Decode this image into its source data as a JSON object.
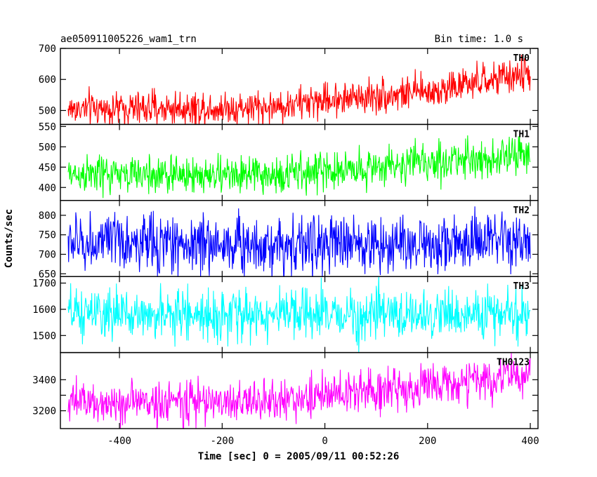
{
  "chart_data": {
    "type": "line",
    "title": "ae050911005226_wam1_trn",
    "bin_time_label": "Bin time: 1.0 s",
    "xlabel": "Time [sec] 0 = 2005/09/11 00:52:26",
    "ylabel": "Counts/sec",
    "xlim": [
      -515,
      415
    ],
    "x_ticks": [
      -400,
      -200,
      0,
      200,
      400
    ],
    "x_range": [
      -500,
      400
    ],
    "bin_time_s": 1.0,
    "grid": false,
    "legend": "none",
    "panels": [
      {
        "name": "TH0",
        "color": "#ff0000",
        "ylim": [
          455,
          700
        ],
        "yticks": [
          500,
          600,
          700
        ],
        "trend": [
          [
            -500,
            505
          ],
          [
            -100,
            510
          ],
          [
            0,
            535
          ],
          [
            200,
            560
          ],
          [
            400,
            620
          ]
        ],
        "noise": 28
      },
      {
        "name": "TH1",
        "color": "#00ff00",
        "ylim": [
          368,
          555
        ],
        "yticks": [
          400,
          450,
          500,
          550
        ],
        "trend": [
          [
            -500,
            432
          ],
          [
            -100,
            430
          ],
          [
            0,
            440
          ],
          [
            200,
            462
          ],
          [
            400,
            480
          ]
        ],
        "noise": 24
      },
      {
        "name": "TH2",
        "color": "#0000ff",
        "ylim": [
          643,
          838
        ],
        "yticks": [
          650,
          700,
          750,
          800
        ],
        "trend": [
          [
            -500,
            730
          ],
          [
            0,
            725
          ],
          [
            400,
            730
          ]
        ],
        "noise": 38
      },
      {
        "name": "TH3",
        "color": "#00ffff",
        "ylim": [
          1435,
          1725
        ],
        "yticks": [
          1500,
          1600,
          1700
        ],
        "trend": [
          [
            -500,
            1580
          ],
          [
            0,
            1578
          ],
          [
            400,
            1580
          ]
        ],
        "noise": 48
      },
      {
        "name": "TH0123",
        "color": "#ff00ff",
        "ylim": [
          3085,
          3575
        ],
        "yticks": [
          3200,
          3300,
          3400
        ],
        "ytick_labels": [
          3200,
          3400
        ],
        "trend": [
          [
            -500,
            3250
          ],
          [
            -100,
            3260
          ],
          [
            0,
            3300
          ],
          [
            200,
            3360
          ],
          [
            400,
            3430
          ]
        ],
        "noise": 70
      }
    ]
  }
}
